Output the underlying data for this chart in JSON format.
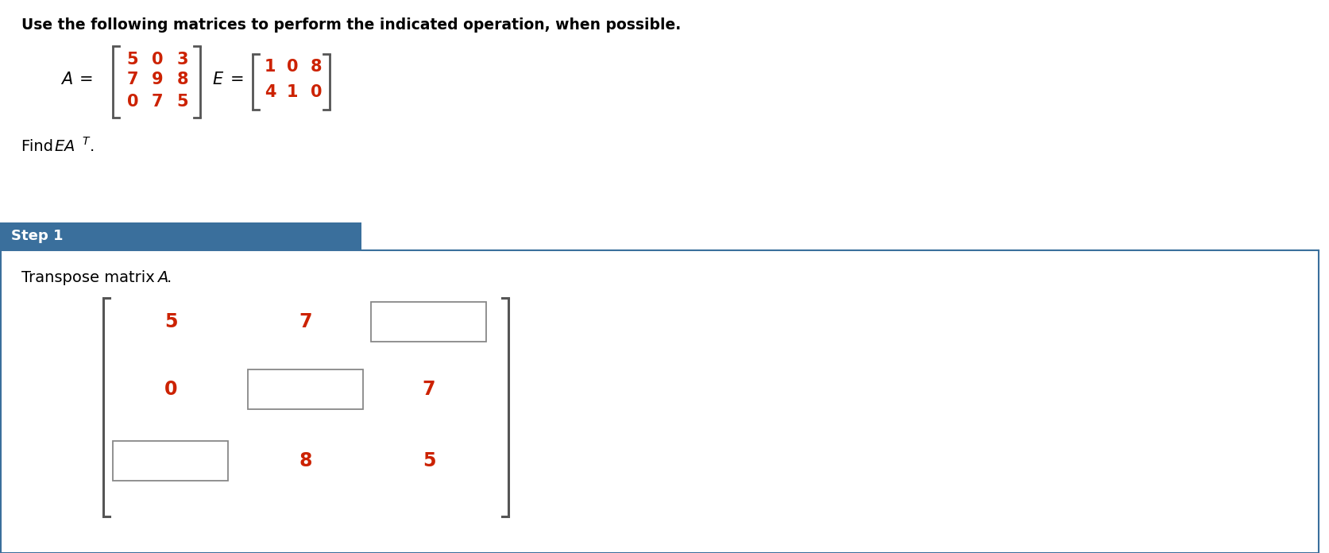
{
  "title_text": "Use the following matrices to perform the indicated operation, when possible.",
  "title_color": "#000000",
  "matrix_A": [
    [
      5,
      0,
      3
    ],
    [
      7,
      9,
      8
    ],
    [
      0,
      7,
      5
    ]
  ],
  "matrix_E": [
    [
      1,
      0,
      8
    ],
    [
      4,
      1,
      0
    ]
  ],
  "matrix_color": "#cc2200",
  "step1_label": "Step 1",
  "step1_bg": "#3a6f9c",
  "step1_text_color": "#ffffff",
  "border_color": "#3a6f9c",
  "bg_color": "#ffffff",
  "number_color": "#cc2200",
  "at_values": [
    [
      "5",
      "7",
      null
    ],
    [
      "0",
      null,
      "7"
    ],
    [
      null,
      "8",
      "5"
    ]
  ]
}
